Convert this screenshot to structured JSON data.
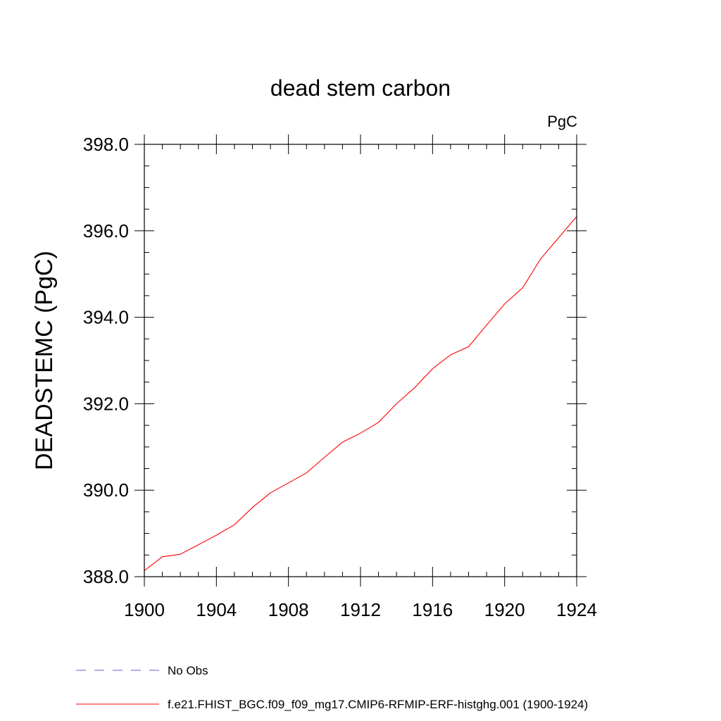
{
  "chart_data": {
    "type": "line",
    "title": "dead stem carbon",
    "units_label": "PgC",
    "xlabel": "",
    "ylabel": "DEADSTEMC  (PgC)",
    "xlim": [
      1900,
      1924
    ],
    "ylim": [
      388.0,
      398.0
    ],
    "x_ticks": [
      1900,
      1904,
      1908,
      1912,
      1916,
      1920,
      1924
    ],
    "x_tick_labels": [
      "1900",
      "1904",
      "1908",
      "1912",
      "1916",
      "1920",
      "1924"
    ],
    "y_ticks": [
      388.0,
      390.0,
      392.0,
      394.0,
      396.0,
      398.0
    ],
    "y_tick_labels": [
      "388.0",
      "390.0",
      "392.0",
      "394.0",
      "396.0",
      "398.0"
    ],
    "grid": false,
    "legend_position": "bottom-left",
    "series": [
      {
        "name": "f.e21.FHIST_BGC.f09_f09_mg17.CMIP6-RFMIP-ERF-histghg.001 (1900-1924)",
        "color": "#ff0000",
        "style": "solid",
        "x": [
          1900,
          1901,
          1902,
          1903,
          1904,
          1905,
          1906,
          1907,
          1908,
          1909,
          1910,
          1911,
          1912,
          1913,
          1914,
          1915,
          1916,
          1917,
          1918,
          1919,
          1920,
          1921,
          1922,
          1923,
          1924
        ],
        "values": [
          388.14,
          388.46,
          388.52,
          388.74,
          388.96,
          389.2,
          389.6,
          389.94,
          390.17,
          390.4,
          390.76,
          391.11,
          391.32,
          391.57,
          392.0,
          392.37,
          392.81,
          393.13,
          393.32,
          393.82,
          394.31,
          394.68,
          395.35,
          395.84,
          396.33
        ]
      }
    ],
    "legend": [
      {
        "label": "No Obs",
        "color": "#6a5acd",
        "style": "dashed"
      },
      {
        "label": "f.e21.FHIST_BGC.f09_f09_mg17.CMIP6-RFMIP-ERF-histghg.001 (1900-1924)",
        "color": "#ff0000",
        "style": "solid"
      }
    ]
  }
}
